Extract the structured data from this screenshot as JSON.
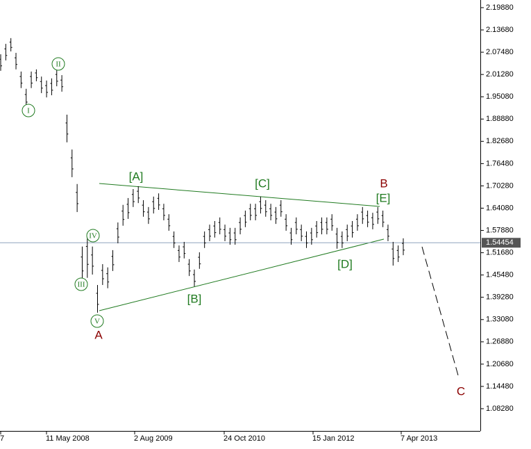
{
  "chart_data": {
    "type": "ohlc",
    "ylim": [
      1.02,
      2.22
    ],
    "yticks": [
      {
        "value": 2.1988,
        "label": "2.19880"
      },
      {
        "value": 2.1368,
        "label": "2.13680"
      },
      {
        "value": 2.0748,
        "label": "2.07480"
      },
      {
        "value": 2.0128,
        "label": "2.01280"
      },
      {
        "value": 1.9508,
        "label": "1.95080"
      },
      {
        "value": 1.8888,
        "label": "1.88880"
      },
      {
        "value": 1.8268,
        "label": "1.82680"
      },
      {
        "value": 1.7648,
        "label": "1.76480"
      },
      {
        "value": 1.7028,
        "label": "1.70280"
      },
      {
        "value": 1.6408,
        "label": "1.64080"
      },
      {
        "value": 1.5788,
        "label": "1.57880"
      },
      {
        "value": 1.5168,
        "label": "1.51680"
      },
      {
        "value": 1.4548,
        "label": "1.45480"
      },
      {
        "value": 1.3928,
        "label": "1.39280"
      },
      {
        "value": 1.3308,
        "label": "1.33080"
      },
      {
        "value": 1.2688,
        "label": "1.26880"
      },
      {
        "value": 1.2068,
        "label": "1.20680"
      },
      {
        "value": 1.1448,
        "label": "1.14480"
      },
      {
        "value": 1.0828,
        "label": "1.08280"
      }
    ],
    "current_price": {
      "value": 1.54454,
      "label": "1.54454"
    },
    "x_labels": [
      "7",
      "11 May 2008",
      "2 Aug 2009",
      "24 Oct 2010",
      "15 Jan 2012",
      "7 Apr 2013"
    ],
    "color": "#000000",
    "high": [
      2.069,
      2.098,
      2.114,
      2.073,
      2.021,
      1.973,
      2.021,
      2.027,
      2.007,
      1.996,
      2.002,
      2.027,
      2.011,
      1.901,
      1.804,
      1.708,
      1.534,
      1.572,
      1.534,
      1.427,
      1.485,
      1.476,
      1.524,
      1.601,
      1.65,
      1.669,
      1.694,
      1.702,
      1.663,
      1.644,
      1.673,
      1.682,
      1.653,
      1.624,
      1.576,
      1.537,
      1.547,
      1.499,
      1.47,
      1.518,
      1.576,
      1.595,
      1.605,
      1.615,
      1.595,
      1.586,
      1.586,
      1.615,
      1.634,
      1.653,
      1.653,
      1.673,
      1.663,
      1.653,
      1.644,
      1.663,
      1.624,
      1.586,
      1.615,
      1.595,
      1.576,
      1.586,
      1.605,
      1.615,
      1.615,
      1.624,
      1.586,
      1.576,
      1.595,
      1.605,
      1.624,
      1.644,
      1.634,
      1.628,
      1.644,
      1.634,
      1.595,
      1.547,
      1.537,
      1.557
    ],
    "low": [
      2.023,
      2.052,
      2.077,
      2.027,
      1.975,
      1.92,
      1.975,
      1.994,
      1.961,
      1.949,
      1.955,
      1.98,
      1.965,
      1.824,
      1.727,
      1.63,
      1.437,
      1.447,
      1.456,
      1.35,
      1.427,
      1.418,
      1.466,
      1.543,
      1.592,
      1.611,
      1.644,
      1.655,
      1.617,
      1.597,
      1.626,
      1.636,
      1.607,
      1.578,
      1.53,
      1.491,
      1.501,
      1.452,
      1.423,
      1.472,
      1.53,
      1.549,
      1.559,
      1.568,
      1.549,
      1.539,
      1.539,
      1.568,
      1.588,
      1.607,
      1.607,
      1.626,
      1.617,
      1.607,
      1.597,
      1.617,
      1.578,
      1.539,
      1.568,
      1.549,
      1.53,
      1.539,
      1.559,
      1.568,
      1.568,
      1.578,
      1.528,
      1.53,
      1.549,
      1.559,
      1.578,
      1.597,
      1.588,
      1.582,
      1.597,
      1.588,
      1.549,
      1.481,
      1.491,
      1.51
    ],
    "annotations": [
      "I",
      "II",
      "III",
      "IV",
      "V",
      "[A]",
      "[B]",
      "[C]",
      "[D]",
      "[E]",
      "A",
      "B",
      "C"
    ]
  }
}
